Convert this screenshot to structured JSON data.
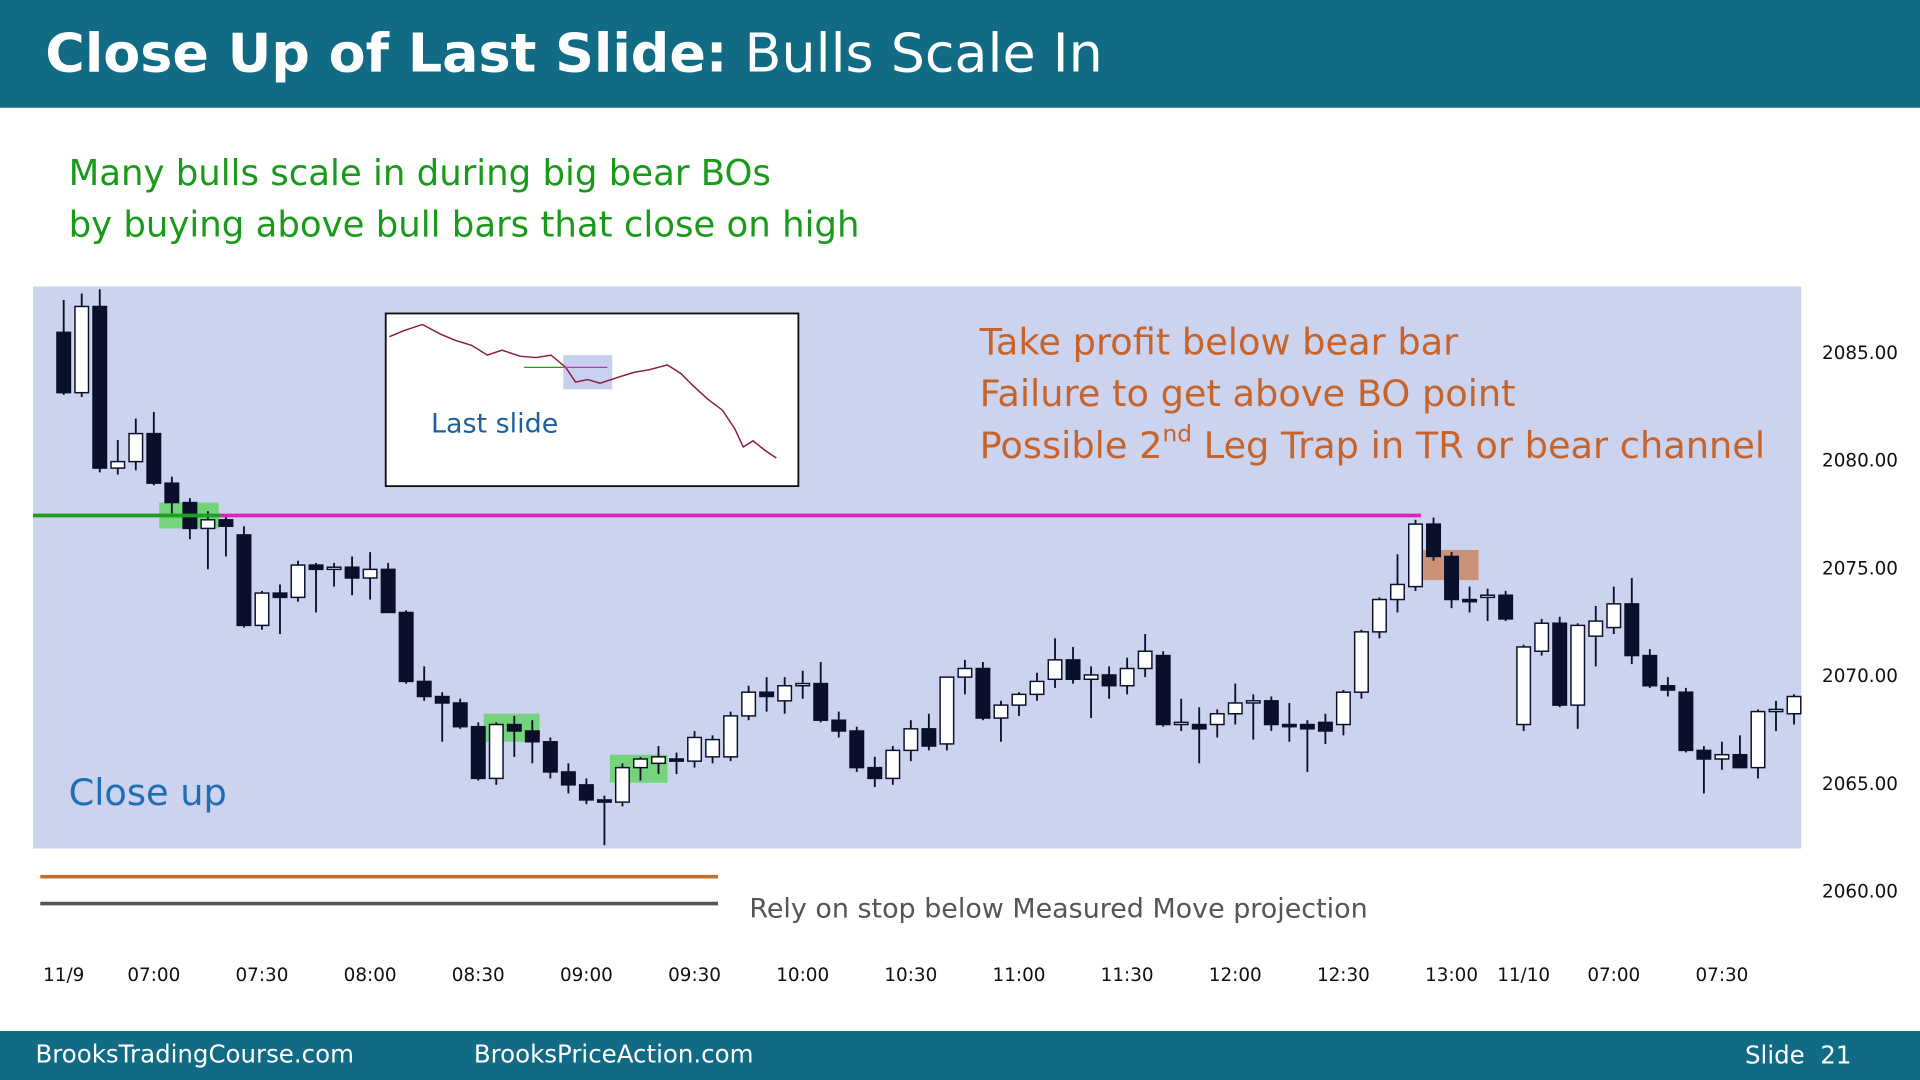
{
  "header": {
    "title_bold": "Close Up of Last Slide:",
    "title_rest": "Bulls Scale In"
  },
  "chart_data": {
    "type": "candlestick",
    "subtitle": [
      "Many bulls scale in during big bear BOs",
      "by buying above bull bars that close on high"
    ],
    "annotations": [
      "Take profit below bear bar",
      "Failure to get above BO point"
    ],
    "annotation_3": [
      "Possible 2",
      "nd",
      " Leg Trap in TR or bear channel"
    ],
    "label": "Close up",
    "inset_label": "Last slide",
    "note": "Rely on stop below Measured Move projection",
    "xlim": [
      -1.7,
      96.4
    ],
    "ylim": [
      2057.1,
      2088.125
    ],
    "xticks": [
      {
        "value": 0,
        "label": "11/9"
      },
      {
        "value": 5,
        "label": "07:00"
      },
      {
        "value": 11,
        "label": "07:30"
      },
      {
        "value": 17,
        "label": "08:00"
      },
      {
        "value": 23,
        "label": "08:30"
      },
      {
        "value": 29,
        "label": "09:00"
      },
      {
        "value": 35,
        "label": "09:30"
      },
      {
        "value": 41,
        "label": "10:00"
      },
      {
        "value": 47,
        "label": "10:30"
      },
      {
        "value": 53,
        "label": "11:00"
      },
      {
        "value": 59,
        "label": "11:30"
      },
      {
        "value": 65,
        "label": "12:00"
      },
      {
        "value": 71,
        "label": "12:30"
      },
      {
        "value": 77,
        "label": "13:00"
      },
      {
        "value": 81,
        "label": "11/10"
      },
      {
        "value": 86,
        "label": "07:00"
      },
      {
        "value": 92,
        "label": "07:30"
      }
    ],
    "yticks": [
      {
        "value": 2085,
        "label": "2085.00"
      },
      {
        "value": 2080,
        "label": "2080.00"
      },
      {
        "value": 2075,
        "label": "2075.00"
      },
      {
        "value": 2070,
        "label": "2070.00"
      },
      {
        "value": 2065,
        "label": "2065.00"
      },
      {
        "value": 2060,
        "label": "2060.00"
      }
    ],
    "open": [
      2086.0,
      2083.2,
      2087.2,
      2079.7,
      2080.0,
      2081.3,
      2079.0,
      2078.1,
      2076.9,
      2077.3,
      2076.6,
      2072.4,
      2073.9,
      2073.7,
      2075.2,
      2075.0,
      2075.1,
      2074.6,
      2075.0,
      2073.0,
      2069.8,
      2069.1,
      2068.8,
      2067.7,
      2065.3,
      2067.8,
      2067.5,
      2067.0,
      2065.6,
      2065.0,
      2064.3,
      2064.2,
      2065.8,
      2066.0,
      2066.2,
      2066.1,
      2066.3,
      2066.3,
      2068.2,
      2069.3,
      2068.9,
      2069.6,
      2069.7,
      2068.0,
      2067.5,
      2065.8,
      2065.3,
      2066.6,
      2067.6,
      2066.9,
      2070.0,
      2070.4,
      2068.1,
      2068.7,
      2069.2,
      2069.9,
      2070.8,
      2069.9,
      2070.1,
      2069.6,
      2070.4,
      2071.0,
      2067.8,
      2067.8,
      2067.8,
      2068.3,
      2068.8,
      2068.9,
      2067.8,
      2067.8,
      2067.9,
      2067.8,
      2069.3,
      2072.1,
      2073.6,
      2074.2,
      2077.1,
      2075.6,
      2073.6,
      2073.7,
      2073.8,
      2067.8,
      2071.2,
      2072.5,
      2068.7,
      2071.9,
      2072.3,
      2073.4,
      2071.0,
      2069.6,
      2069.3,
      2066.6,
      2066.2,
      2066.4,
      2065.8,
      2068.4,
      2068.3
    ],
    "high": [
      2087.5,
      2087.8,
      2088.0,
      2081.0,
      2082.0,
      2082.3,
      2079.3,
      2078.3,
      2077.7,
      2077.5,
      2077.0,
      2074.0,
      2074.3,
      2075.4,
      2075.3,
      2075.3,
      2075.6,
      2075.8,
      2075.3,
      2073.1,
      2070.5,
      2069.3,
      2069.0,
      2067.9,
      2067.9,
      2068.2,
      2068.0,
      2067.2,
      2066.0,
      2065.3,
      2064.5,
      2066.0,
      2066.3,
      2066.8,
      2066.5,
      2067.5,
      2067.3,
      2068.4,
      2069.6,
      2070.0,
      2070.0,
      2070.3,
      2070.7,
      2068.4,
      2067.7,
      2066.3,
      2066.8,
      2068.0,
      2068.3,
      2070.0,
      2070.8,
      2070.7,
      2068.9,
      2069.3,
      2070.2,
      2071.8,
      2071.4,
      2070.5,
      2070.5,
      2070.9,
      2072.0,
      2071.2,
      2069.0,
      2068.6,
      2068.5,
      2069.7,
      2069.2,
      2069.1,
      2068.8,
      2068.0,
      2068.3,
      2069.4,
      2072.2,
      2073.7,
      2075.7,
      2077.3,
      2077.4,
      2075.8,
      2074.2,
      2074.1,
      2074.0,
      2071.5,
      2072.7,
      2072.8,
      2072.5,
      2073.3,
      2074.2,
      2074.6,
      2071.3,
      2070.0,
      2069.5,
      2066.8,
      2067.0,
      2067.3,
      2068.5,
      2068.9,
      2069.2
    ],
    "low": [
      2083.1,
      2083.0,
      2079.5,
      2079.4,
      2079.6,
      2078.9,
      2077.6,
      2076.4,
      2075.0,
      2075.6,
      2072.3,
      2072.2,
      2072.0,
      2073.5,
      2073.0,
      2074.2,
      2073.8,
      2073.6,
      2073.0,
      2069.7,
      2068.9,
      2067.0,
      2067.6,
      2065.2,
      2065.0,
      2066.3,
      2066.0,
      2065.3,
      2064.6,
      2064.1,
      2062.2,
      2064.0,
      2065.2,
      2065.5,
      2065.5,
      2065.8,
      2066.0,
      2066.1,
      2068.0,
      2068.4,
      2068.3,
      2069.0,
      2067.9,
      2067.2,
      2065.6,
      2064.9,
      2065.0,
      2066.1,
      2066.6,
      2066.6,
      2069.2,
      2068.0,
      2067.0,
      2068.2,
      2068.9,
      2069.5,
      2069.7,
      2068.1,
      2069.0,
      2069.2,
      2070.0,
      2067.7,
      2067.5,
      2066.0,
      2067.2,
      2067.8,
      2067.1,
      2067.5,
      2067.0,
      2065.6,
      2066.9,
      2067.3,
      2069.0,
      2071.8,
      2073.0,
      2074.0,
      2075.4,
      2073.2,
      2073.0,
      2072.6,
      2072.6,
      2067.5,
      2071.0,
      2068.6,
      2067.6,
      2070.5,
      2072.0,
      2070.6,
      2069.5,
      2069.1,
      2066.5,
      2064.6,
      2065.7,
      2065.8,
      2065.3,
      2067.5,
      2067.8
    ],
    "close": [
      2083.2,
      2087.2,
      2079.7,
      2080.0,
      2081.3,
      2079.0,
      2078.1,
      2076.9,
      2077.3,
      2077.0,
      2072.4,
      2073.9,
      2073.7,
      2075.2,
      2075.0,
      2075.1,
      2074.6,
      2075.0,
      2073.0,
      2069.8,
      2069.1,
      2068.8,
      2067.7,
      2065.3,
      2067.8,
      2067.5,
      2067.0,
      2065.6,
      2065.0,
      2064.3,
      2064.2,
      2065.8,
      2066.2,
      2066.3,
      2066.1,
      2067.2,
      2067.1,
      2068.2,
      2069.3,
      2069.1,
      2069.6,
      2069.7,
      2068.0,
      2067.5,
      2065.8,
      2065.3,
      2066.6,
      2067.6,
      2066.8,
      2070.0,
      2070.4,
      2068.1,
      2068.7,
      2069.2,
      2069.8,
      2070.8,
      2069.9,
      2070.1,
      2069.6,
      2070.4,
      2071.2,
      2067.8,
      2067.9,
      2067.6,
      2068.3,
      2068.8,
      2068.9,
      2067.8,
      2067.7,
      2067.6,
      2067.5,
      2069.3,
      2072.1,
      2073.6,
      2074.3,
      2077.1,
      2075.6,
      2073.6,
      2073.5,
      2073.8,
      2072.7,
      2071.4,
      2072.5,
      2068.7,
      2072.4,
      2072.6,
      2073.4,
      2071.0,
      2069.6,
      2069.4,
      2066.6,
      2066.2,
      2066.4,
      2065.8,
      2068.4,
      2068.5,
      2069.1
    ],
    "bull_color": "#ffffff",
    "bear_color": "#0a0f2a",
    "plot_color": "#cbd3ef",
    "lines": [
      {
        "color": "#1fa01f",
        "y": 2077.5,
        "x": [
          -1.7,
          8.7
        ]
      },
      {
        "color": "#e020c0",
        "y": 2077.5,
        "x": [
          8.7,
          75.3
        ]
      },
      {
        "color": "#c0702a",
        "y": 2060.74,
        "x": [
          -1.3,
          36.3
        ]
      },
      {
        "color": "#555555",
        "y": 2059.49,
        "x": [
          -1.3,
          36.3
        ]
      }
    ],
    "boxes": [
      {
        "color": "#5fd35f",
        "x": [
          5.3,
          8.6
        ],
        "y": [
          2076.9,
          2078.1
        ]
      },
      {
        "color": "#5fd35f",
        "x": [
          23.3,
          26.4
        ],
        "y": [
          2067.0,
          2068.3
        ]
      },
      {
        "color": "#5fd35f",
        "x": [
          30.3,
          33.5
        ],
        "y": [
          2065.1,
          2066.4
        ]
      },
      {
        "color": "#c9835a",
        "x": [
          75.3,
          78.5
        ],
        "y": [
          2074.5,
          2075.9
        ]
      }
    ]
  },
  "footer": {
    "left": "BrooksTradingCourse.com",
    "center": "BrooksPriceAction.com",
    "right": "Slide  21"
  }
}
